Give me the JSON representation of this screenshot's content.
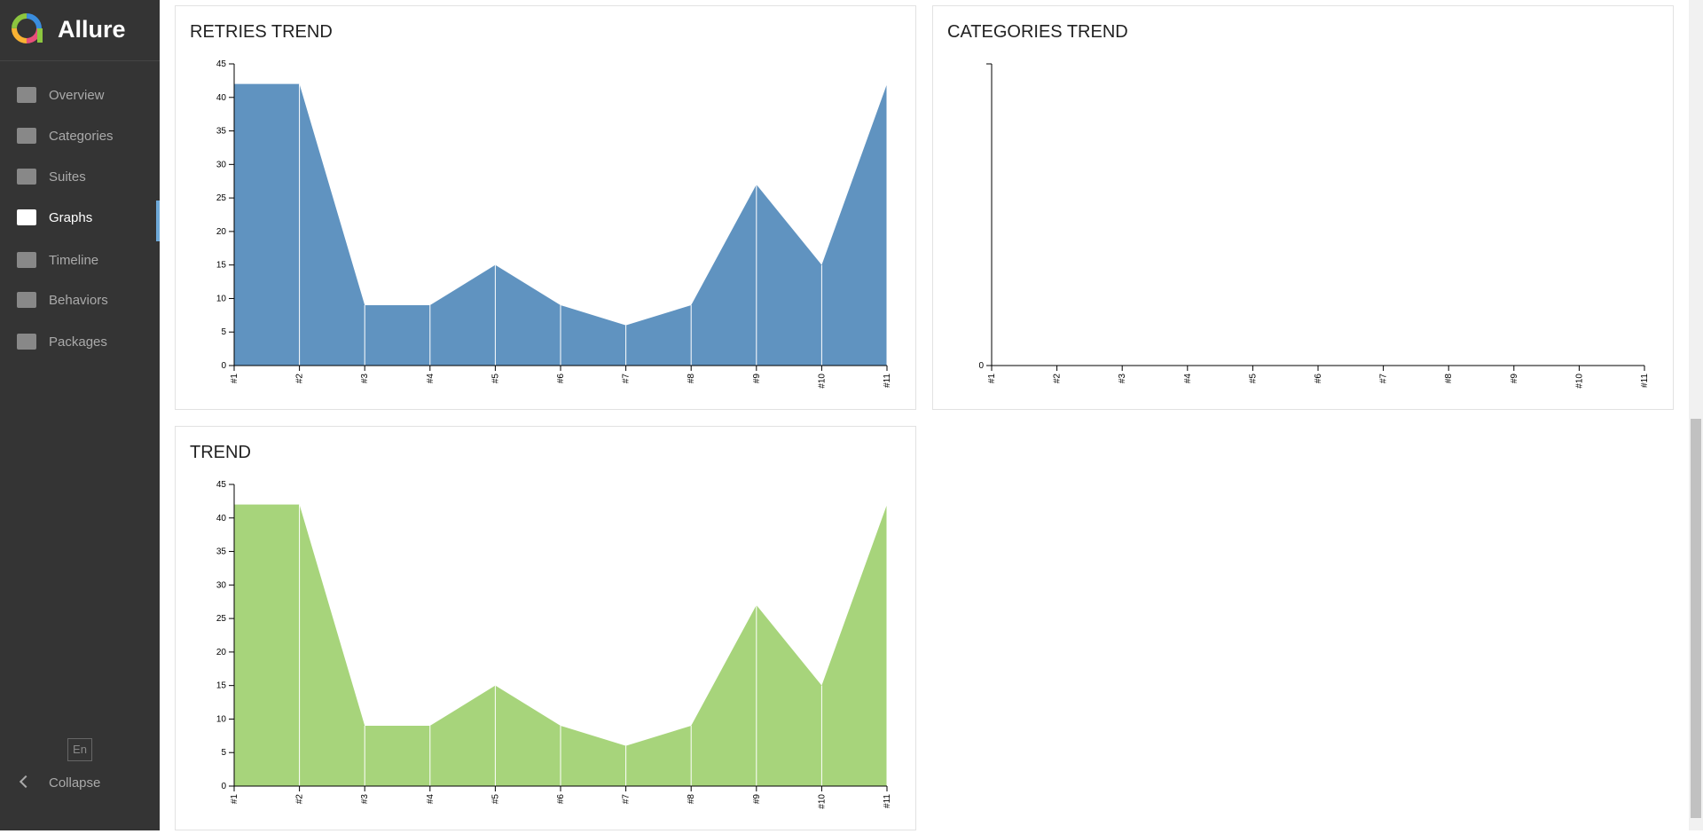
{
  "sidebar": {
    "brand": "Allure",
    "nav": [
      "Overview",
      "Categories",
      "Suites",
      "Graphs",
      "Timeline",
      "Behaviors",
      "Packages"
    ],
    "active": "Graphs",
    "language": "En",
    "collapse": "Collapse"
  },
  "chart_data": [
    {
      "type": "area",
      "title": "RETRIES TREND",
      "categories": [
        "#1",
        "#2",
        "#3",
        "#4",
        "#5",
        "#6",
        "#7",
        "#8",
        "#9",
        "#10",
        "#11"
      ],
      "series": [
        {
          "color": "#6093c0",
          "values": [
            42,
            42,
            9,
            9,
            15,
            9,
            6,
            9,
            27,
            15,
            42
          ]
        }
      ],
      "ylim": [
        0,
        45
      ],
      "yticks": [
        0,
        5,
        10,
        15,
        20,
        25,
        30,
        35,
        40,
        45
      ]
    },
    {
      "type": "area",
      "title": "CATEGORIES TREND",
      "categories": [
        "#1",
        "#2",
        "#3",
        "#4",
        "#5",
        "#6",
        "#7",
        "#8",
        "#9",
        "#10",
        "#11"
      ],
      "series": [],
      "yticks": [
        0
      ]
    },
    {
      "type": "area",
      "title": "TREND",
      "categories": [
        "#1",
        "#2",
        "#3",
        "#4",
        "#5",
        "#6",
        "#7",
        "#8",
        "#9",
        "#10",
        "#11"
      ],
      "series": [
        {
          "color": "#a7d47b",
          "values": [
            42,
            42,
            9,
            9,
            15,
            9,
            6,
            9,
            27,
            15,
            42
          ]
        }
      ],
      "ylim": [
        0,
        45
      ],
      "yticks": [
        0,
        5,
        10,
        15,
        20,
        25,
        30,
        35,
        40,
        45
      ]
    }
  ]
}
